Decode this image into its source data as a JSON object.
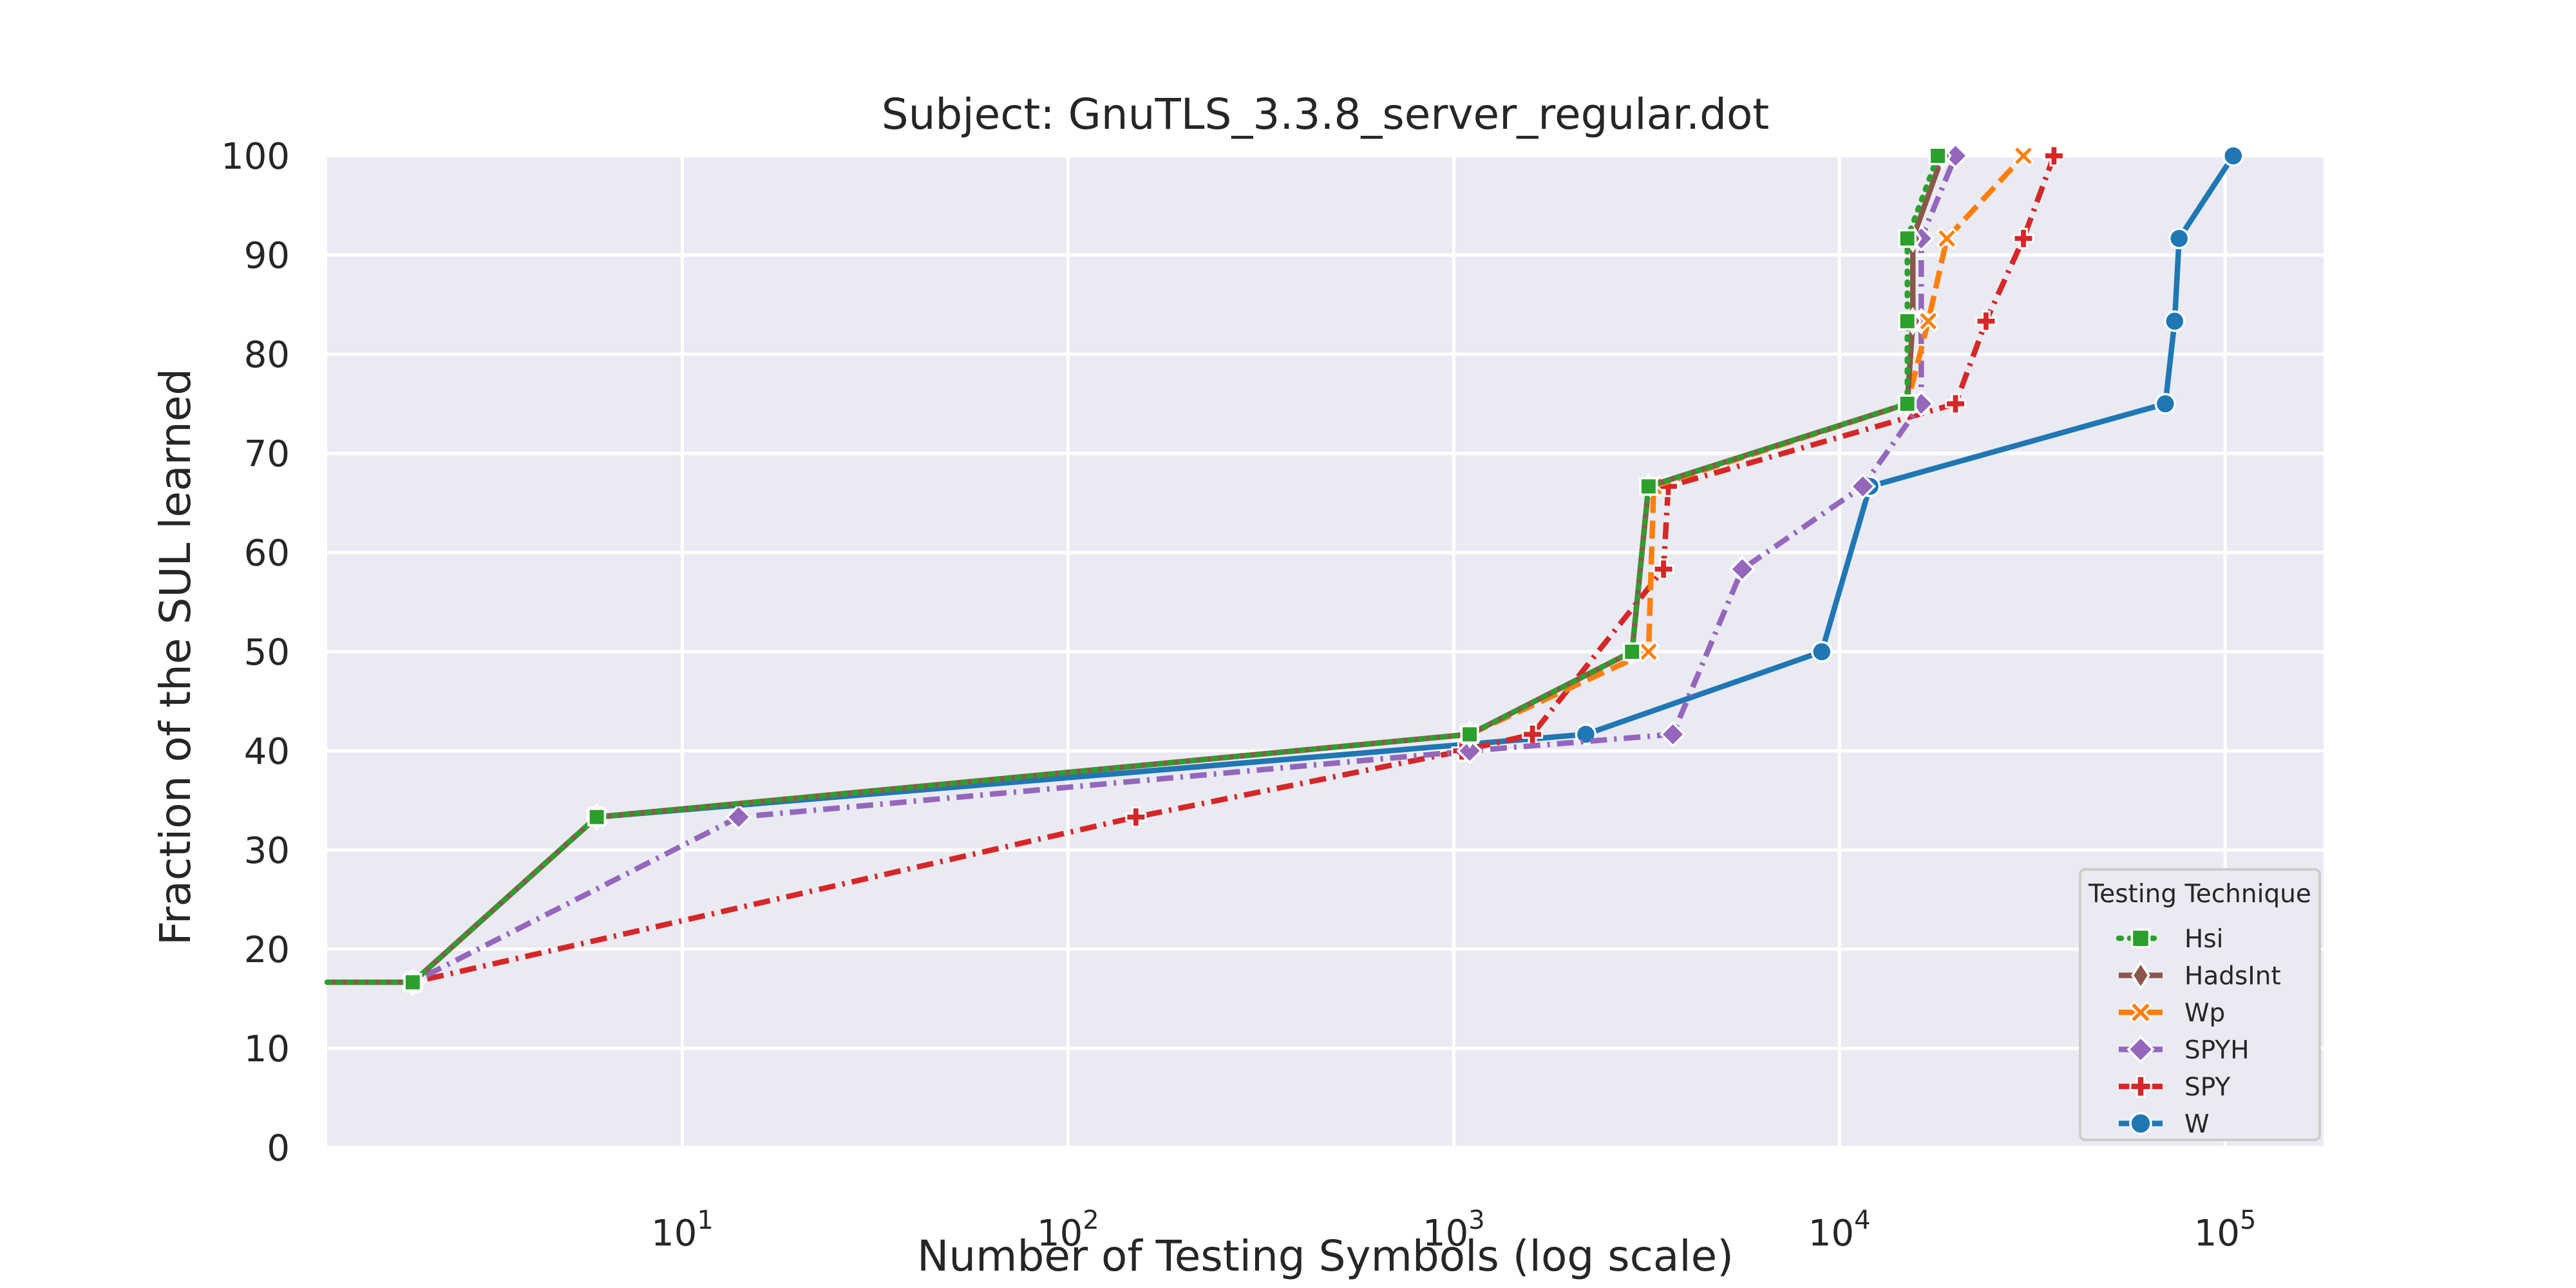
{
  "chart_data": {
    "type": "line",
    "title": "Subject: GnuTLS_3.3.8_server_regular.dot",
    "xlabel": "Number of Testing Symbols (log scale)",
    "ylabel": "Fraction of the SUL learned",
    "xscale": "log",
    "xlim": [
      1.2,
      180000
    ],
    "ylim": [
      0,
      100
    ],
    "x_ticks": [
      {
        "value": 10,
        "base": "10",
        "exp": "1"
      },
      {
        "value": 100,
        "base": "10",
        "exp": "2"
      },
      {
        "value": 1000,
        "base": "10",
        "exp": "3"
      },
      {
        "value": 10000,
        "base": "10",
        "exp": "4"
      },
      {
        "value": 100000,
        "base": "10",
        "exp": "5"
      }
    ],
    "y_ticks": [
      0,
      10,
      20,
      30,
      40,
      50,
      60,
      70,
      80,
      90,
      100
    ],
    "grid": true,
    "background": "#eaeaf2",
    "legend": {
      "title": "Testing Technique",
      "position": "lower right"
    },
    "series": [
      {
        "name": "Hsi",
        "color": "#2ca02c",
        "dash": "dotted",
        "marker": "square",
        "points": [
          [
            1.2,
            16.67
          ],
          [
            2,
            16.67
          ],
          [
            6,
            33.33
          ],
          [
            1100,
            41.67
          ],
          [
            2900,
            50
          ],
          [
            3200,
            66.67
          ],
          [
            15000,
            75
          ],
          [
            15000,
            83.33
          ],
          [
            15000,
            91.67
          ],
          [
            18000,
            100
          ]
        ]
      },
      {
        "name": "HadsInt",
        "color": "#8c564b",
        "dash": "solid",
        "marker": "thin_diamond",
        "points": [
          [
            1.2,
            16.67
          ],
          [
            2,
            16.67
          ],
          [
            6,
            33.33
          ],
          [
            1100,
            41.67
          ],
          [
            2900,
            50
          ],
          [
            3200,
            66.67
          ],
          [
            15000,
            75
          ],
          [
            15500,
            83.33
          ],
          [
            15500,
            91.67
          ],
          [
            18500,
            100
          ]
        ]
      },
      {
        "name": "Wp",
        "color": "#ff7f0e",
        "dash": "dashed",
        "marker": "x",
        "points": [
          [
            1.2,
            16.67
          ],
          [
            2,
            16.67
          ],
          [
            6,
            33.33
          ],
          [
            1100,
            41.67
          ],
          [
            3200,
            50
          ],
          [
            3300,
            66.67
          ],
          [
            15000,
            75
          ],
          [
            17000,
            83.33
          ],
          [
            19000,
            91.67
          ],
          [
            30000,
            100
          ]
        ]
      },
      {
        "name": "SPYH",
        "color": "#9467bd",
        "dash": "dashdot",
        "marker": "diamond",
        "points": [
          [
            1.2,
            16.67
          ],
          [
            2,
            16.67
          ],
          [
            14,
            33.33
          ],
          [
            1100,
            40
          ],
          [
            3700,
            41.67
          ],
          [
            5600,
            58.33
          ],
          [
            11500,
            66.67
          ],
          [
            16300,
            75
          ],
          [
            16300,
            83.33
          ],
          [
            16300,
            91.67
          ],
          [
            20000,
            100
          ]
        ]
      },
      {
        "name": "SPY",
        "color": "#d62728",
        "dash": "dashdot",
        "marker": "plus",
        "points": [
          [
            1.2,
            16.67
          ],
          [
            2,
            16.67
          ],
          [
            150,
            33.33
          ],
          [
            1050,
            40
          ],
          [
            1600,
            41.67
          ],
          [
            3500,
            58.33
          ],
          [
            3600,
            66.67
          ],
          [
            20000,
            75
          ],
          [
            24000,
            83.33
          ],
          [
            30000,
            91.67
          ],
          [
            36000,
            100
          ]
        ]
      },
      {
        "name": "W",
        "color": "#1f77b4",
        "dash": "solid",
        "marker": "circle",
        "points": [
          [
            1.2,
            16.67
          ],
          [
            2,
            16.67
          ],
          [
            6,
            33.33
          ],
          [
            2200,
            41.67
          ],
          [
            9000,
            50
          ],
          [
            12000,
            66.67
          ],
          [
            70000,
            75
          ],
          [
            74000,
            83.33
          ],
          [
            76000,
            91.67
          ],
          [
            105000,
            100
          ]
        ]
      }
    ]
  }
}
